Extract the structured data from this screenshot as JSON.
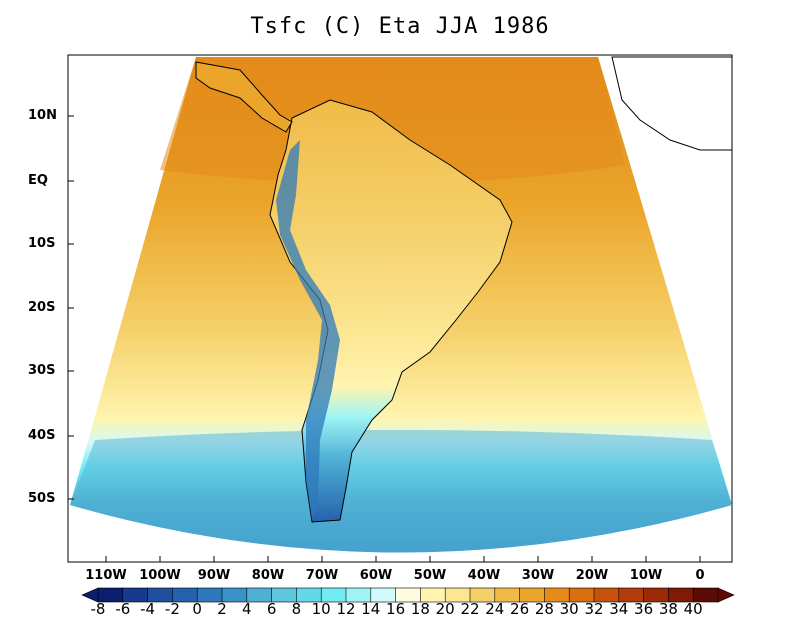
{
  "title": "Tsfc (C) Eta JJA 1986",
  "latitude_labels": [
    "10N",
    "EQ",
    "10S",
    "20S",
    "30S",
    "40S",
    "50S"
  ],
  "longitude_labels": [
    "110W",
    "100W",
    "90W",
    "80W",
    "70W",
    "60W",
    "50W",
    "40W",
    "30W",
    "20W",
    "10W",
    "0"
  ],
  "colorbar": {
    "labels": [
      "-8",
      "-6",
      "-4",
      "-2",
      "0",
      "2",
      "4",
      "6",
      "8",
      "10",
      "12",
      "14",
      "16",
      "18",
      "20",
      "22",
      "24",
      "26",
      "28",
      "30",
      "32",
      "34",
      "36",
      "38",
      "40"
    ],
    "colors": [
      "#0b1e6e",
      "#173a8c",
      "#1f4f9e",
      "#2562ad",
      "#2e79bb",
      "#3a92c7",
      "#4fb0d4",
      "#5ec6dd",
      "#63d9e8",
      "#72ecf2",
      "#9ff5f5",
      "#d2fafa",
      "#fffbe0",
      "#fff4b0",
      "#fbe692",
      "#f5d06a",
      "#f0bb48",
      "#eba52a",
      "#e48b1a",
      "#d96f10",
      "#c7520c",
      "#b23c0a",
      "#9a2a08",
      "#7e1a06",
      "#5c0b04"
    ]
  }
}
